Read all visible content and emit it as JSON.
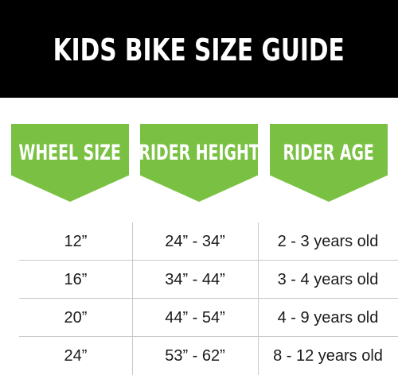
{
  "title": "KIDS BIKE SIZE GUIDE",
  "accent_color": "#7ac143",
  "headers": [
    "WHEEL SIZE",
    "RIDER HEIGHT",
    "RIDER AGE"
  ],
  "rows": [
    [
      "12”",
      "24” - 34”",
      "2 - 3 years old"
    ],
    [
      "16”",
      "34” - 44”",
      "3 - 4 years old"
    ],
    [
      "20”",
      "44” - 54”",
      "4 - 9 years old"
    ],
    [
      "24”",
      "53” - 62”",
      "8 - 12 years old"
    ]
  ]
}
